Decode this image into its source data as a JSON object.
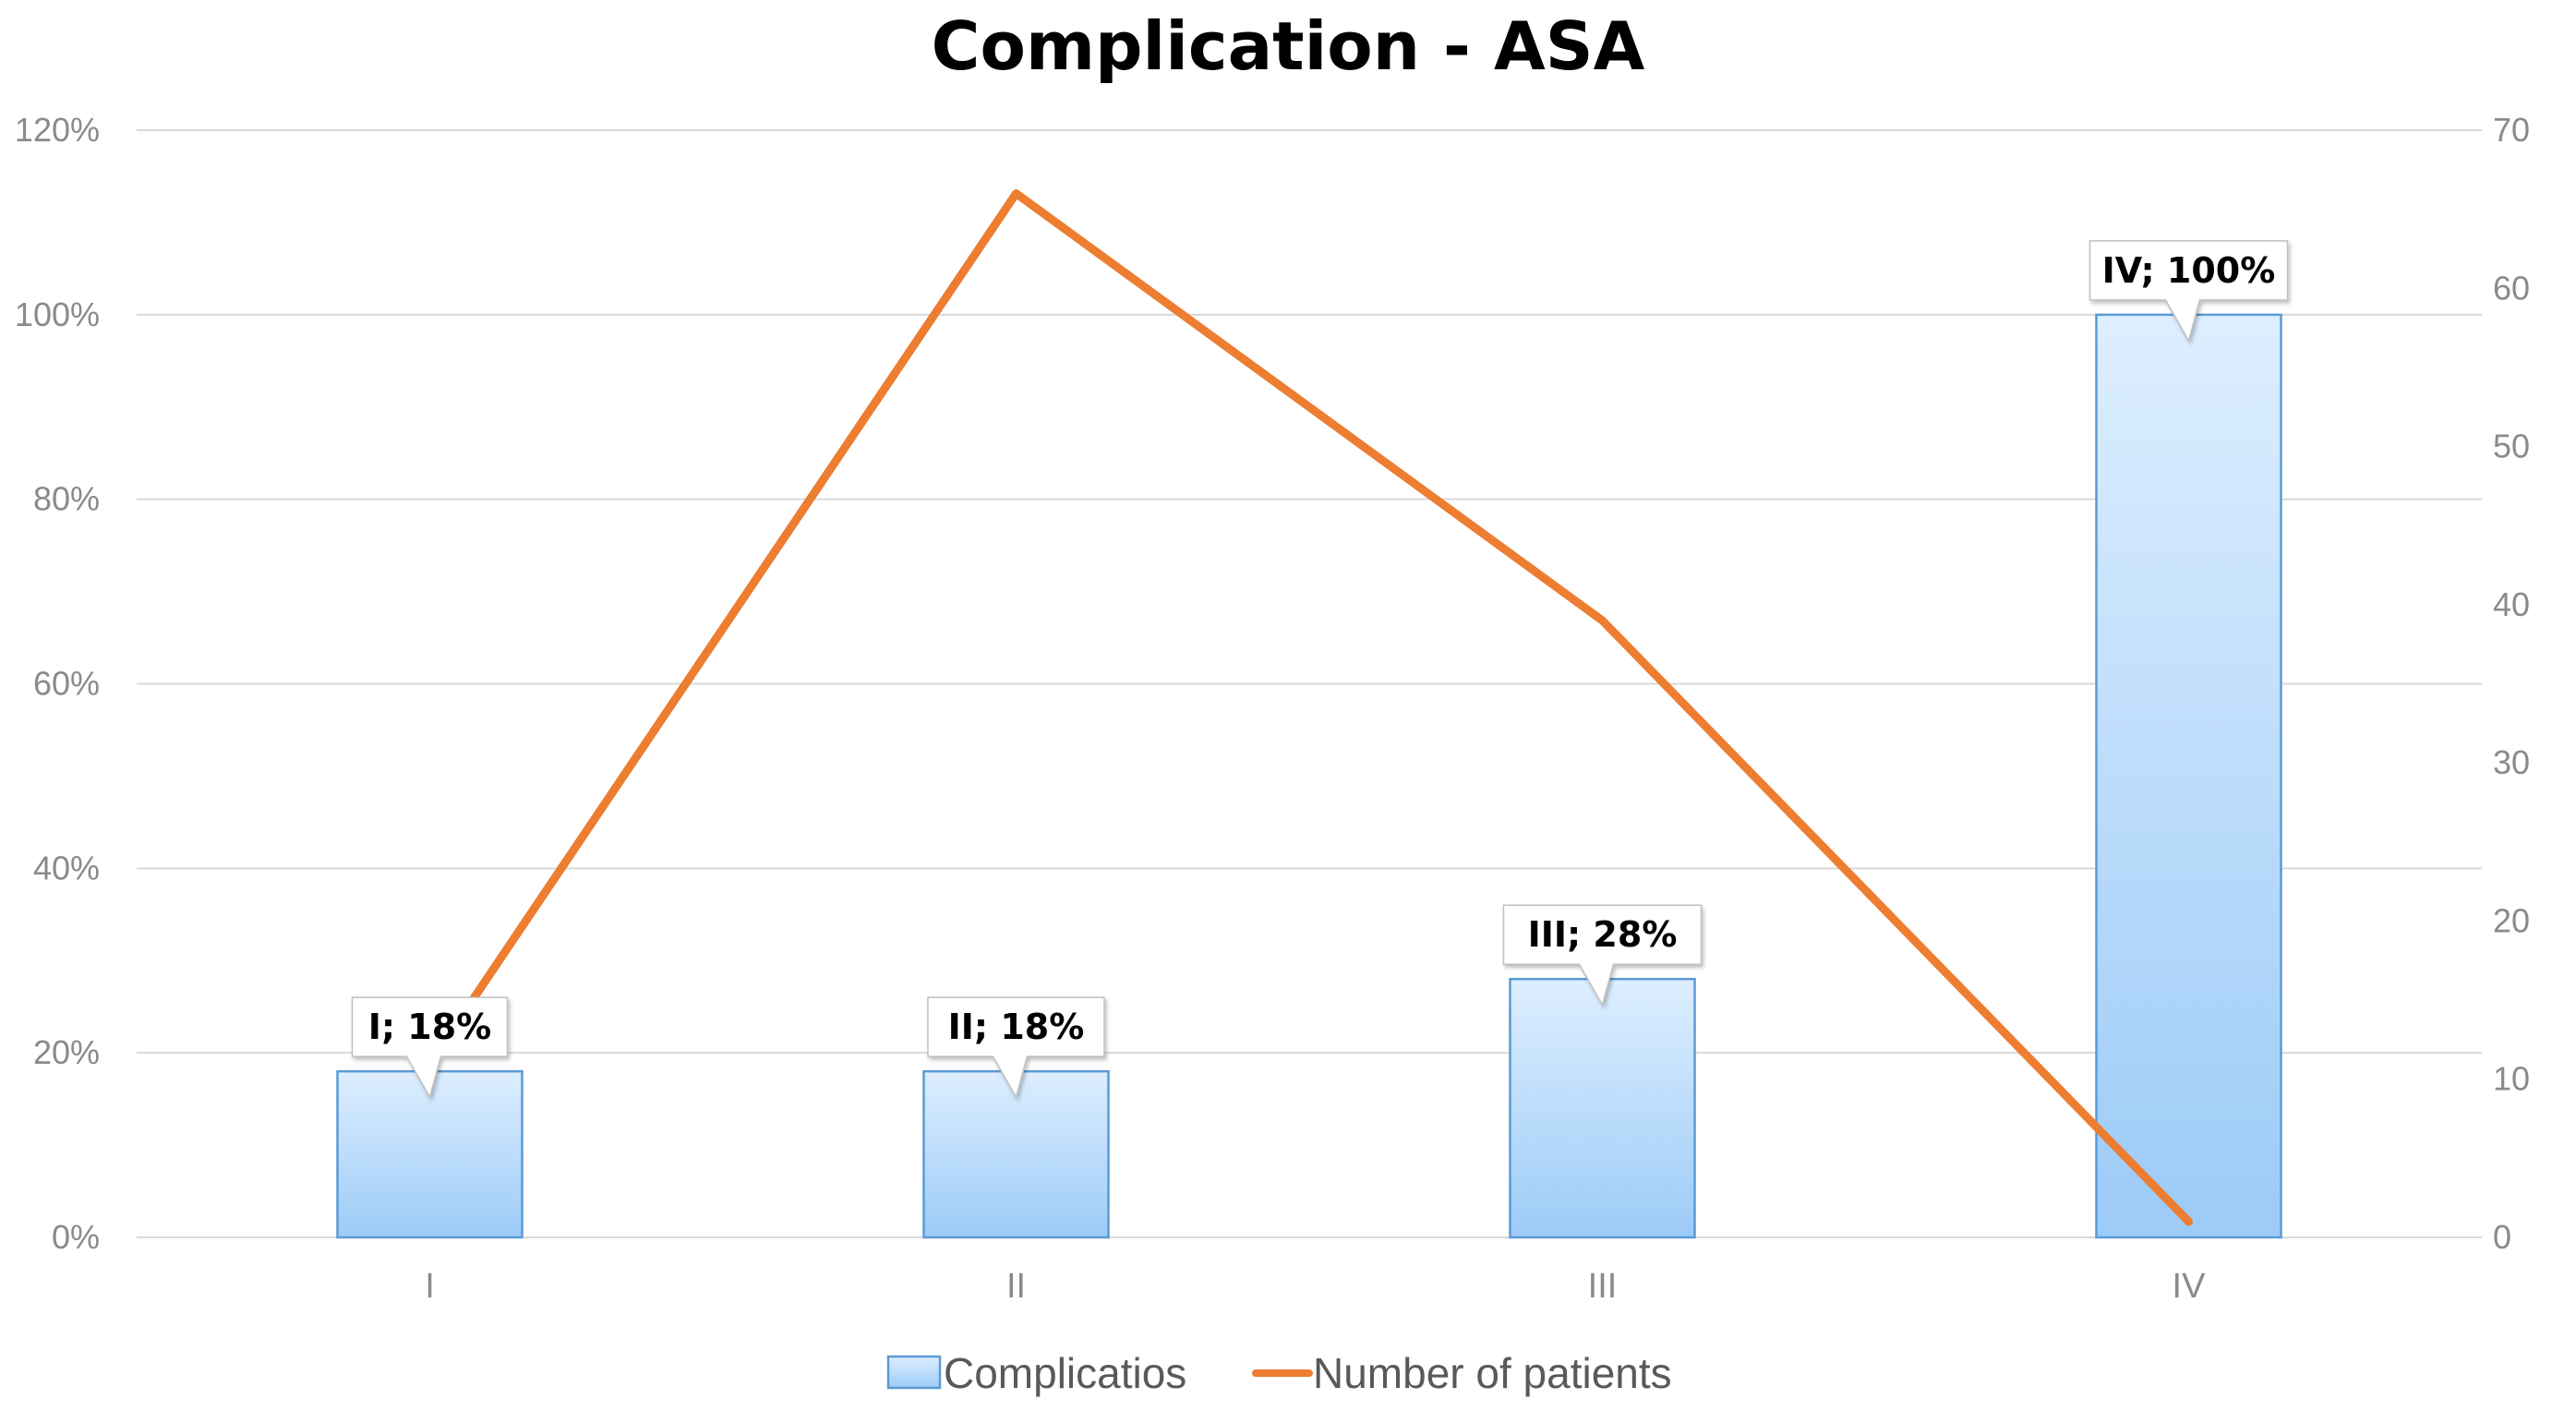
{
  "chart_data": {
    "type": "bar+line",
    "title": "Complication - ASA",
    "categories": [
      "I",
      "II",
      "III",
      "IV"
    ],
    "series": [
      {
        "name": "Complicatios",
        "type": "bar",
        "axis": "left",
        "values": [
          18,
          18,
          28,
          100
        ],
        "data_labels": [
          "I; 18%",
          "II; 18%",
          "III; 28%",
          "IV; 100%"
        ]
      },
      {
        "name": "Number of patients",
        "type": "line",
        "axis": "right",
        "values": [
          11,
          66,
          39,
          1
        ]
      }
    ],
    "y_left": {
      "min": 0,
      "max": 120,
      "step": 20,
      "tick_labels": [
        "0%",
        "20%",
        "40%",
        "60%",
        "80%",
        "100%",
        "120%"
      ]
    },
    "y_right": {
      "min": 0,
      "max": 70,
      "step": 10,
      "tick_labels": [
        "0",
        "10",
        "20",
        "30",
        "40",
        "50",
        "60",
        "70"
      ]
    },
    "grid": true,
    "legend_position": "bottom",
    "colors": {
      "bar_top": "#ddeeff",
      "bar_bottom": "#9ccbf7",
      "bar_border": "#5b9bd5",
      "line": "#ed7d31",
      "grid": "#d9d9d9"
    }
  }
}
